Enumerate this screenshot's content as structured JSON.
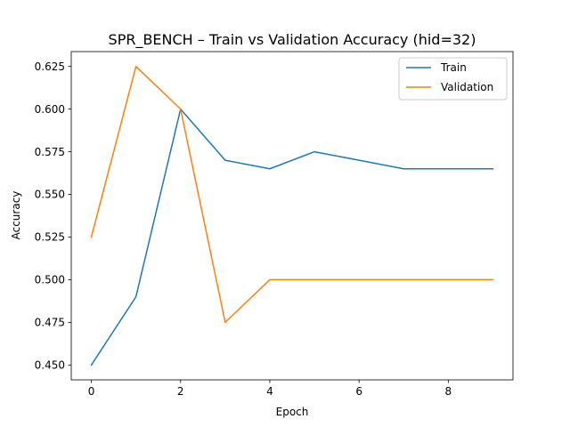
{
  "chart_data": {
    "type": "line",
    "title": "SPR_BENCH – Train vs Validation Accuracy (hid=32)",
    "xlabel": "Epoch",
    "ylabel": "Accuracy",
    "x": [
      0,
      1,
      2,
      3,
      4,
      5,
      6,
      7,
      8,
      9
    ],
    "series": [
      {
        "name": "Train",
        "color": "#1f77b4",
        "values": [
          0.45,
          0.49,
          0.6,
          0.57,
          0.565,
          0.575,
          0.57,
          0.565,
          0.565,
          0.565
        ]
      },
      {
        "name": "Validation",
        "color": "#ff7f0e",
        "values": [
          0.525,
          0.625,
          0.6,
          0.475,
          0.5,
          0.5,
          0.5,
          0.5,
          0.5,
          0.5
        ]
      }
    ],
    "xlim": [
      -0.45,
      9.45
    ],
    "ylim": [
      0.4413,
      0.6337
    ],
    "x_ticks": [
      0,
      2,
      4,
      6,
      8
    ],
    "x_tick_labels": [
      "0",
      "2",
      "4",
      "6",
      "8"
    ],
    "y_ticks": [
      0.45,
      0.475,
      0.5,
      0.525,
      0.55,
      0.575,
      0.6,
      0.625
    ],
    "y_tick_labels": [
      "0.450",
      "0.475",
      "0.500",
      "0.525",
      "0.550",
      "0.575",
      "0.600",
      "0.625"
    ],
    "grid": false,
    "legend_position": "top-right"
  }
}
